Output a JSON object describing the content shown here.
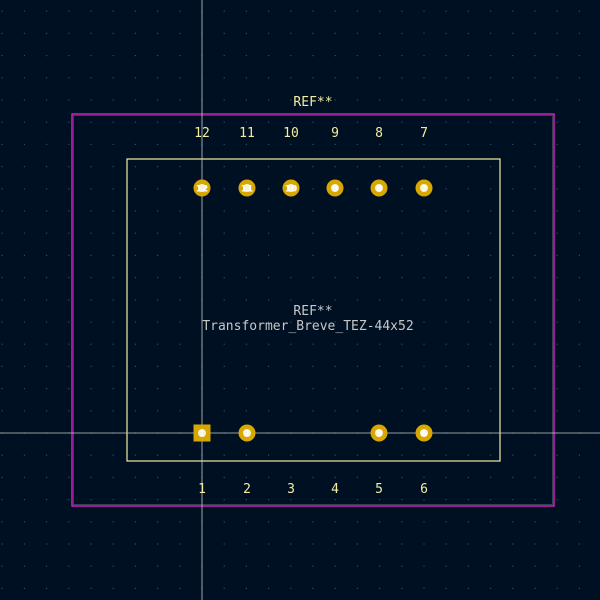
{
  "theme": {
    "background": "#001023",
    "grid_dot": "#3a4a5e",
    "crosshair": "#c9c9c9",
    "courtyard": "#ff26e2",
    "silkscreen": "#f2eda1",
    "fab_text": "#c7c7c7",
    "pad_gold": "#d8a800",
    "pad_hole": "#ffffff"
  },
  "footprint": {
    "ref_top": "REF**",
    "ref_center": "REF**",
    "value": "Transformer_Breve_TEZ-44x52",
    "top_pin_numbers": [
      "12",
      "11",
      "10",
      "9",
      "8",
      "7"
    ],
    "bottom_pin_numbers": [
      "1",
      "2",
      "3",
      "4",
      "5",
      "6"
    ],
    "top_pads": [
      "12",
      "11",
      "10",
      "9",
      "8",
      "7"
    ],
    "bottom_pads": [
      "1",
      "2",
      "5",
      "6"
    ]
  }
}
